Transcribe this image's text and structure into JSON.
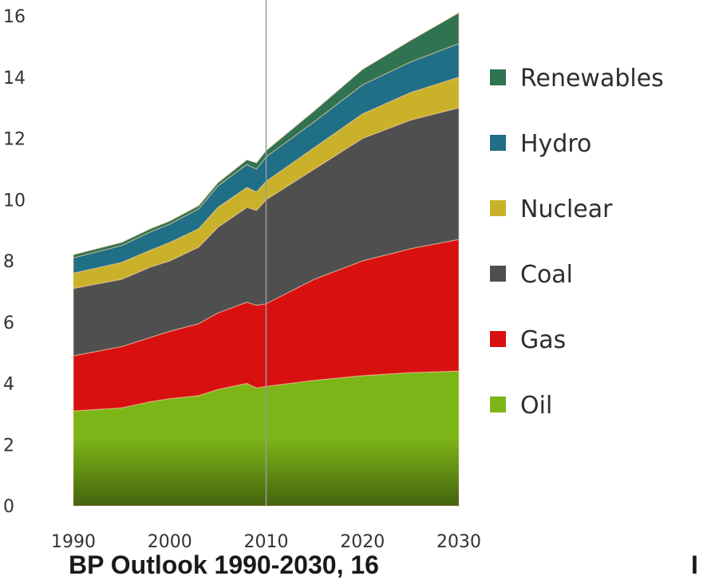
{
  "chart_data": {
    "type": "area",
    "stacked": true,
    "title": "",
    "xlabel": "",
    "ylabel": "",
    "x": [
      1990,
      1995,
      1998,
      2000,
      2003,
      2005,
      2008,
      2009,
      2010,
      2015,
      2020,
      2025,
      2030
    ],
    "xlim": [
      1990,
      2030
    ],
    "ylim": [
      0,
      16
    ],
    "x_ticks": [
      "1990",
      "2000",
      "2010",
      "2020",
      "2030"
    ],
    "y_ticks": [
      "0",
      "2",
      "4",
      "6",
      "8",
      "10",
      "12",
      "14",
      "16"
    ],
    "marker_line_x": 2010,
    "legend_position": "right",
    "grid": false,
    "series": [
      {
        "name": "Oil",
        "color": "#7cb518",
        "values": [
          3.1,
          3.2,
          3.4,
          3.5,
          3.6,
          3.8,
          4.0,
          3.85,
          3.9,
          4.1,
          4.25,
          4.35,
          4.4
        ]
      },
      {
        "name": "Gas",
        "color": "#d81010",
        "values": [
          1.8,
          2.0,
          2.1,
          2.2,
          2.35,
          2.5,
          2.65,
          2.7,
          2.7,
          3.3,
          3.75,
          4.05,
          4.3
        ]
      },
      {
        "name": "Coal",
        "color": "#4f4f4f",
        "values": [
          2.2,
          2.2,
          2.3,
          2.3,
          2.5,
          2.8,
          3.1,
          3.1,
          3.4,
          3.6,
          4.0,
          4.2,
          4.3
        ]
      },
      {
        "name": "Nuclear",
        "color": "#c9b22a",
        "values": [
          0.5,
          0.55,
          0.55,
          0.6,
          0.6,
          0.65,
          0.65,
          0.6,
          0.6,
          0.7,
          0.8,
          0.9,
          1.0
        ]
      },
      {
        "name": "Hydro",
        "color": "#1f6f86",
        "values": [
          0.5,
          0.55,
          0.6,
          0.6,
          0.65,
          0.7,
          0.75,
          0.75,
          0.8,
          0.85,
          0.95,
          1.0,
          1.1
        ]
      },
      {
        "name": "Renewables",
        "color": "#2f7350",
        "values": [
          0.1,
          0.1,
          0.1,
          0.1,
          0.1,
          0.1,
          0.15,
          0.2,
          0.2,
          0.35,
          0.5,
          0.7,
          1.0
        ]
      }
    ]
  },
  "caption": {
    "main": "BP Outlook 1990-2030, 16",
    "right": "I"
  }
}
